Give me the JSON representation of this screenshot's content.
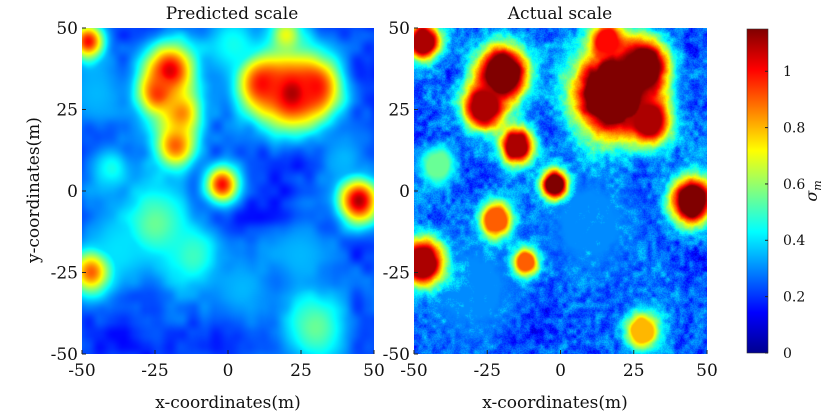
{
  "chart_data": [
    {
      "type": "heatmap",
      "title": "Predicted scale",
      "xlabel": "x-coordinates(m)",
      "ylabel": "y-coordinates(m)",
      "xlim": [
        -50,
        50
      ],
      "ylim": [
        -50,
        50
      ],
      "xticks": [
        "-50",
        "-25",
        "0",
        "25",
        "50"
      ],
      "yticks": [
        "50",
        "25",
        "0",
        "-25",
        "-50"
      ],
      "texture": "smooth",
      "blobs": [
        {
          "x": -48,
          "y": 46,
          "v": 1.0,
          "s": 4
        },
        {
          "x": -20,
          "y": 37,
          "v": 1.05,
          "s": 6
        },
        {
          "x": -24,
          "y": 30,
          "v": 0.95,
          "s": 5
        },
        {
          "x": -16,
          "y": 24,
          "v": 0.85,
          "s": 5
        },
        {
          "x": -18,
          "y": 14,
          "v": 0.9,
          "s": 5
        },
        {
          "x": 22,
          "y": 30,
          "v": 1.1,
          "s": 8
        },
        {
          "x": 12,
          "y": 33,
          "v": 1.0,
          "s": 6
        },
        {
          "x": 30,
          "y": 32,
          "v": 1.0,
          "s": 6
        },
        {
          "x": 20,
          "y": 48,
          "v": 0.7,
          "s": 4
        },
        {
          "x": -2,
          "y": 2,
          "v": 1.0,
          "s": 4
        },
        {
          "x": 45,
          "y": -3,
          "v": 1.1,
          "s": 5
        },
        {
          "x": -47,
          "y": -25,
          "v": 0.9,
          "s": 5
        },
        {
          "x": -40,
          "y": 7,
          "v": 0.45,
          "s": 5
        },
        {
          "x": -25,
          "y": -10,
          "v": 0.55,
          "s": 9
        },
        {
          "x": -12,
          "y": -20,
          "v": 0.5,
          "s": 7
        },
        {
          "x": -38,
          "y": -18,
          "v": 0.4,
          "s": 8
        },
        {
          "x": 30,
          "y": -42,
          "v": 0.55,
          "s": 8
        },
        {
          "x": 25,
          "y": -20,
          "v": 0.35,
          "s": 8
        },
        {
          "x": 5,
          "y": -30,
          "v": 0.35,
          "s": 8
        },
        {
          "x": 40,
          "y": 10,
          "v": 0.35,
          "s": 6
        },
        {
          "x": -45,
          "y": 30,
          "v": 0.35,
          "s": 8
        },
        {
          "x": 2,
          "y": 45,
          "v": 0.45,
          "s": 7
        }
      ]
    },
    {
      "type": "heatmap",
      "title": "Actual scale",
      "xlabel": "x-coordinates(m)",
      "ylabel": "",
      "xlim": [
        -50,
        50
      ],
      "ylim": [
        -50,
        50
      ],
      "xticks": [
        "-50",
        "-25",
        "0",
        "25",
        "50"
      ],
      "yticks": [
        "50",
        "25",
        "0",
        "-25",
        "-50"
      ],
      "texture": "noisy",
      "blobs": [
        {
          "x": -47,
          "y": 46,
          "v": 1.1,
          "s": 4
        },
        {
          "x": -20,
          "y": 36,
          "v": 1.2,
          "s": 6
        },
        {
          "x": -26,
          "y": 26,
          "v": 1.1,
          "s": 5
        },
        {
          "x": -15,
          "y": 14,
          "v": 1.1,
          "s": 4
        },
        {
          "x": 18,
          "y": 30,
          "v": 1.3,
          "s": 9
        },
        {
          "x": 28,
          "y": 38,
          "v": 1.2,
          "s": 6
        },
        {
          "x": 16,
          "y": 46,
          "v": 1.0,
          "s": 4
        },
        {
          "x": 30,
          "y": 22,
          "v": 1.1,
          "s": 5
        },
        {
          "x": -2,
          "y": 2,
          "v": 1.2,
          "s": 3
        },
        {
          "x": 45,
          "y": -3,
          "v": 1.2,
          "s": 5
        },
        {
          "x": -47,
          "y": -22,
          "v": 1.1,
          "s": 5
        },
        {
          "x": -22,
          "y": -9,
          "v": 0.9,
          "s": 4
        },
        {
          "x": -12,
          "y": -22,
          "v": 0.9,
          "s": 3
        },
        {
          "x": 28,
          "y": -43,
          "v": 0.8,
          "s": 4
        },
        {
          "x": -42,
          "y": 8,
          "v": 0.55,
          "s": 4
        },
        {
          "x": 10,
          "y": -10,
          "v": 0.3,
          "s": 10
        },
        {
          "x": -30,
          "y": -30,
          "v": 0.3,
          "s": 10
        }
      ]
    }
  ],
  "colorbar": {
    "label": "σ_m",
    "label_symbol": "σ",
    "label_subscript": "m",
    "range": [
      0,
      1.15
    ],
    "ticks": [
      "0",
      "0.2",
      "0.4",
      "0.6",
      "0.8",
      "1"
    ]
  }
}
